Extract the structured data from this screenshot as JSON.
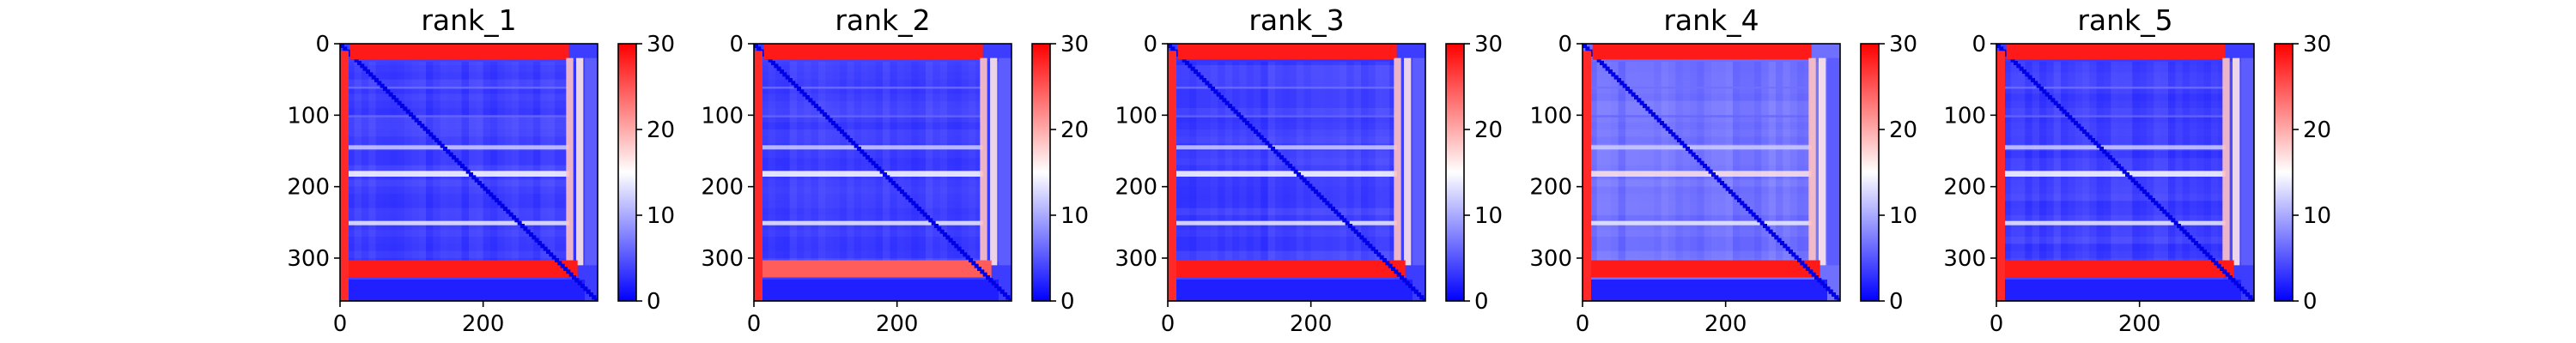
{
  "chart_data": [
    {
      "type": "heatmap",
      "title": "rank_1",
      "xlabel": "",
      "ylabel": "",
      "x_range": [
        0,
        360
      ],
      "y_range": [
        360,
        0
      ],
      "x_ticks": [
        "0",
        "200"
      ],
      "y_ticks": [
        "0",
        "100",
        "200",
        "300"
      ],
      "colorbar": {
        "range": [
          0,
          30
        ],
        "ticks": [
          "0",
          "10",
          "20",
          "30"
        ],
        "colors": [
          "#0000ff",
          "#ffffff",
          "#ff0000"
        ]
      },
      "notes": "PAE-style matrix: mostly blue (low, ~0-8) with a dark blue diagonal; red bands (~25-30) at rows 0-22 and 300-330 and at columns 0-10 and ~320-345; light/white streaks near rows 145, 180, 250"
    },
    {
      "type": "heatmap",
      "title": "rank_2",
      "xlabel": "",
      "ylabel": "",
      "x_range": [
        0,
        360
      ],
      "y_range": [
        360,
        0
      ],
      "x_ticks": [
        "0",
        "200"
      ],
      "y_ticks": [
        "0",
        "100",
        "200",
        "300"
      ],
      "colorbar": {
        "range": [
          0,
          30
        ],
        "ticks": [
          "0",
          "10",
          "20",
          "30"
        ],
        "colors": [
          "#0000ff",
          "#ffffff",
          "#ff0000"
        ]
      },
      "notes": "Similar pattern to rank_1 with slightly weaker red bands near rows 300-330"
    },
    {
      "type": "heatmap",
      "title": "rank_3",
      "xlabel": "",
      "ylabel": "",
      "x_range": [
        0,
        360
      ],
      "y_range": [
        360,
        0
      ],
      "x_ticks": [
        "0",
        "200"
      ],
      "y_ticks": [
        "0",
        "100",
        "200",
        "300"
      ],
      "colorbar": {
        "range": [
          0,
          30
        ],
        "ticks": [
          "0",
          "10",
          "20",
          "30"
        ],
        "colors": [
          "#0000ff",
          "#ffffff",
          "#ff0000"
        ]
      },
      "notes": "Similar pattern to rank_1"
    },
    {
      "type": "heatmap",
      "title": "rank_4",
      "xlabel": "",
      "ylabel": "",
      "x_range": [
        0,
        360
      ],
      "y_range": [
        360,
        0
      ],
      "x_ticks": [
        "0",
        "200"
      ],
      "y_ticks": [
        "0",
        "100",
        "200",
        "300"
      ],
      "colorbar": {
        "range": [
          0,
          30
        ],
        "ticks": [
          "0",
          "10",
          "20",
          "30"
        ],
        "colors": [
          "#0000ff",
          "#ffffff",
          "#ff0000"
        ]
      },
      "notes": "Lighter blue overall with more mid-range values; red bands at top rows and rows ~300-330"
    },
    {
      "type": "heatmap",
      "title": "rank_5",
      "xlabel": "",
      "ylabel": "",
      "x_range": [
        0,
        360
      ],
      "y_range": [
        360,
        0
      ],
      "x_ticks": [
        "0",
        "200"
      ],
      "y_ticks": [
        "0",
        "100",
        "200",
        "300"
      ],
      "colorbar": {
        "range": [
          0,
          30
        ],
        "ticks": [
          "0",
          "10",
          "20",
          "30"
        ],
        "colors": [
          "#0000ff",
          "#ffffff",
          "#ff0000"
        ]
      },
      "notes": "Similar pattern to rank_1"
    }
  ]
}
